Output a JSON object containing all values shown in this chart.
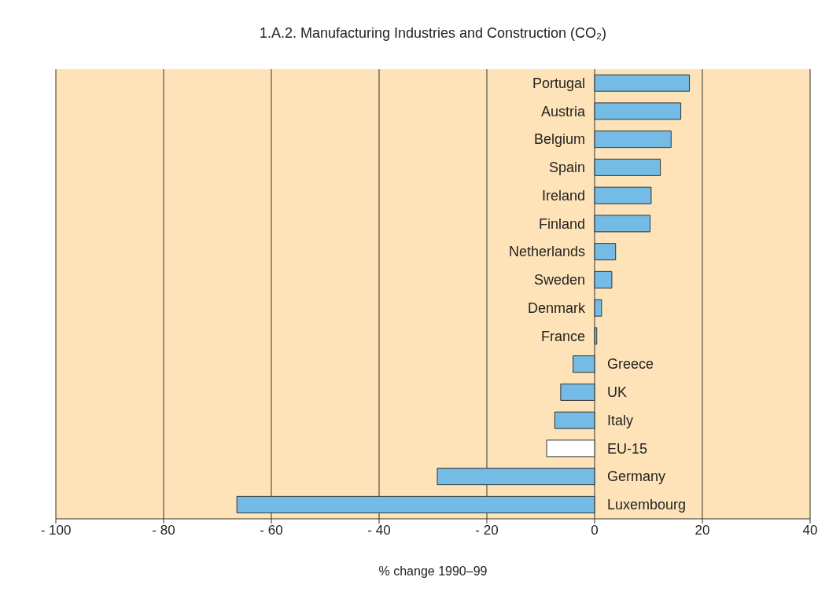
{
  "chart_data": {
    "type": "bar",
    "orientation": "horizontal",
    "title": "1.A.2.  Manufacturing Industries and Construction (CO₂)",
    "xlabel": "% change 1990–99",
    "categories": [
      "Portugal",
      "Austria",
      "Belgium",
      "Spain",
      "Ireland",
      "Finland",
      "Netherlands",
      "Sweden",
      "Denmark",
      "France",
      "Greece",
      "UK",
      "Italy",
      "EU-15",
      "Germany",
      "Luxembourg"
    ],
    "values": [
      17.6,
      16.0,
      14.2,
      12.2,
      10.5,
      10.3,
      3.9,
      3.2,
      1.3,
      0.4,
      -4.0,
      -6.3,
      -7.4,
      -8.9,
      -29.2,
      -66.4
    ],
    "colors": [
      "#74bbe6",
      "#74bbe6",
      "#74bbe6",
      "#74bbe6",
      "#74bbe6",
      "#74bbe6",
      "#74bbe6",
      "#74bbe6",
      "#74bbe6",
      "#74bbe6",
      "#74bbe6",
      "#74bbe6",
      "#74bbe6",
      "#ffffff",
      "#74bbe6",
      "#74bbe6"
    ],
    "xlim": [
      -100,
      40
    ],
    "xticks": [
      {
        "value": -100,
        "label": "- 100"
      },
      {
        "value": -80,
        "label": "- 80"
      },
      {
        "value": -60,
        "label": "- 60"
      },
      {
        "value": -40,
        "label": "- 40"
      },
      {
        "value": -20,
        "label": "- 20"
      },
      0,
      20,
      40
    ],
    "grid": "x"
  }
}
